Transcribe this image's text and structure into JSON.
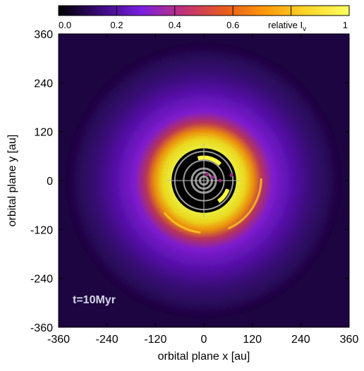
{
  "chart_data": {
    "type": "heatmap",
    "title": "",
    "xlabel": "orbital plane x [au]",
    "ylabel": "orbital plane y [au]",
    "xlim": [
      -360,
      360
    ],
    "ylim": [
      -360,
      360
    ],
    "x_ticks": [
      -360,
      -240,
      -120,
      0,
      120,
      240,
      360
    ],
    "y_ticks": [
      360,
      240,
      120,
      0,
      -120,
      -240,
      -360
    ],
    "colorbar": {
      "label_main": "relative I",
      "label_sub": "v",
      "range": [
        0,
        1
      ],
      "ticks": [
        0.0,
        0.2,
        0.4,
        0.6,
        1
      ],
      "tick_labels": [
        "0.0",
        "0.2",
        "0.4",
        "0.6",
        "1"
      ],
      "colormap": [
        "#000000",
        "#3a0a7a",
        "#7b1fe0",
        "#c0307a",
        "#e85a1e",
        "#ff9a0a",
        "#ffd82a",
        "#ffff60"
      ]
    },
    "annotation": "t=10Myr",
    "annotation_color": "#d8d8e8",
    "disk": {
      "inner_gap_radius_au": 80,
      "bright_ring_peak_au": 115,
      "halo_extent_au": 360
    },
    "planet_orbits_au": [
      10,
      20,
      30,
      50,
      72
    ],
    "planets": [
      {
        "x": 8,
        "y": 15
      },
      {
        "x": 22,
        "y": 8
      },
      {
        "x": 40,
        "y": 0
      },
      {
        "x": 68,
        "y": 13
      }
    ],
    "colors": {
      "gap": "#000000",
      "orbit": "#9a9a9a",
      "crosshair": "#bbbbbb",
      "planet": "#a02080"
    }
  }
}
